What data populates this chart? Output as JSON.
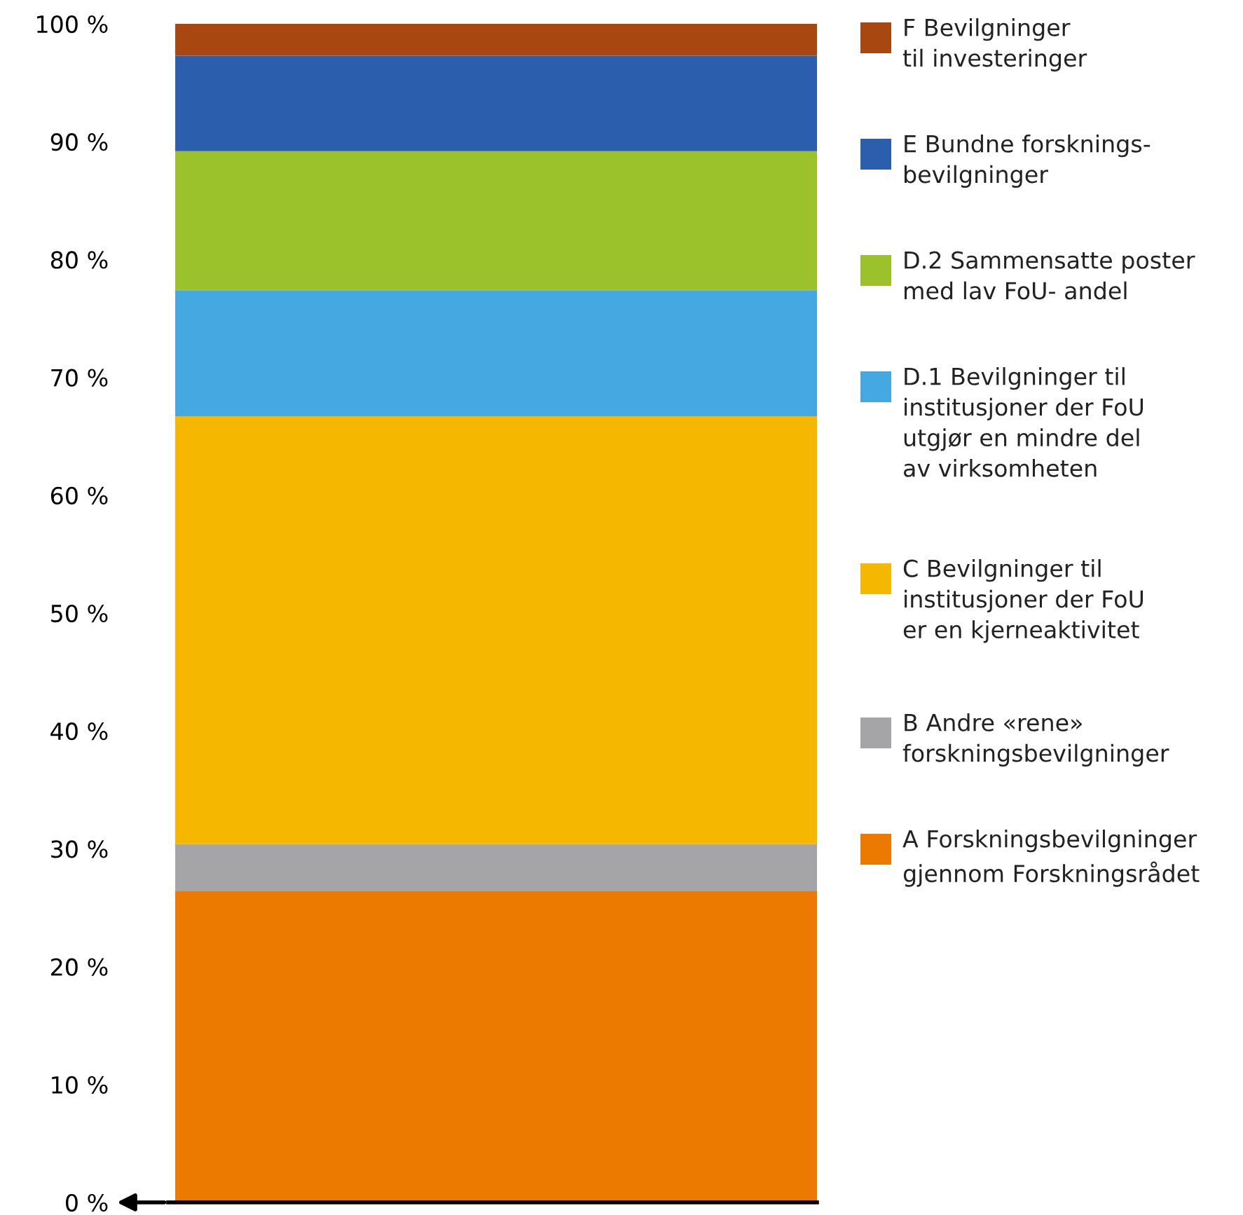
{
  "chart_data": {
    "type": "bar",
    "stacked": true,
    "categories": [
      null
    ],
    "series": [
      {
        "name": "A Forskningsbevilgninger\ngjennom Forskningsrådet",
        "color": "#ec7a00",
        "values": [
          26.4
        ]
      },
      {
        "name": "B Andre «rene»\nforskningsbevilgninger",
        "color": "#a5a5a8",
        "values": [
          4.0
        ]
      },
      {
        "name": "C Bevilgninger til\ninstitusjoner der FoU\ner en kjerneaktivitet",
        "color": "#f6b700",
        "values": [
          36.3
        ]
      },
      {
        "name": "D.1 Bevilgninger til\ninstitusjoner der FoU\nutgjør en mindre del\nav virksomheten",
        "color": "#45a8e0",
        "values": [
          10.7
        ]
      },
      {
        "name": "D.2 Sammensatte poster\nmed lav FoU- andel",
        "color": "#9bc12b",
        "values": [
          11.8
        ]
      },
      {
        "name": "E Bundne forsknings-\nbevilgninger",
        "color": "#2b5fad",
        "values": [
          8.1
        ]
      },
      {
        "name": "F Bevilgninger\ntil investeringer",
        "color": "#a8470f",
        "values": [
          2.7
        ]
      }
    ],
    "ylim": [
      0,
      100
    ],
    "yticks": [
      {
        "value": 0,
        "label": "0 %"
      },
      {
        "value": 10,
        "label": "10 %"
      },
      {
        "value": 20,
        "label": "20 %"
      },
      {
        "value": 30,
        "label": "30 %"
      },
      {
        "value": 40,
        "label": "40 %"
      },
      {
        "value": 50,
        "label": "50 %"
      },
      {
        "value": 60,
        "label": "60 %"
      },
      {
        "value": 70,
        "label": "70 %"
      },
      {
        "value": 80,
        "label": "80 %"
      },
      {
        "value": 90,
        "label": "90 %"
      },
      {
        "value": 100,
        "label": "100 %"
      }
    ],
    "tick_labels": "y",
    "grid": false,
    "legend": "right"
  }
}
